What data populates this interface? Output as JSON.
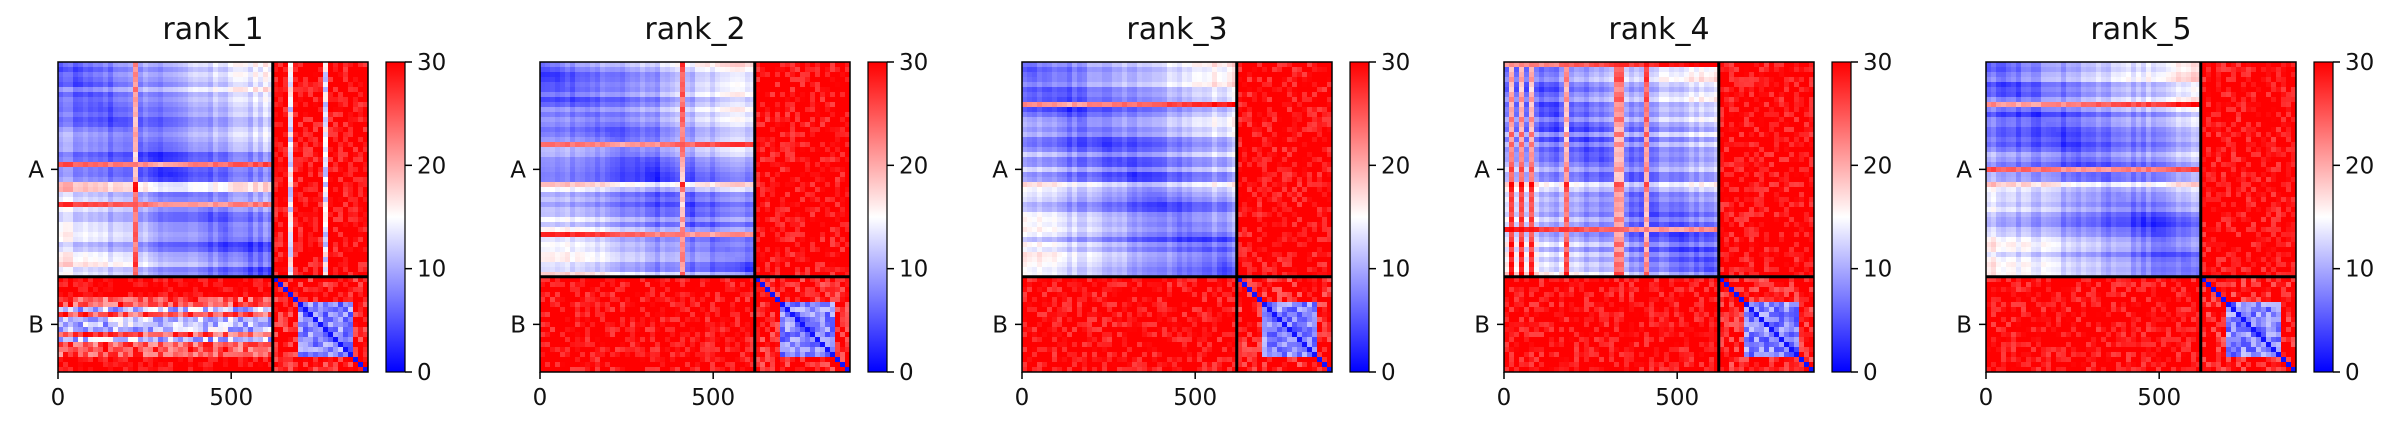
{
  "figure": {
    "background": "#ffffff"
  },
  "colormap": {
    "name": "bwr",
    "low": "#0000ff",
    "mid": "#ffffff",
    "high": "#ff0000"
  },
  "chart_data": [
    {
      "type": "heatmap",
      "title": "rank_1",
      "matrix_size": 895,
      "chain_boundary": 620,
      "chains": [
        "A",
        "B"
      ],
      "xticks": [
        0,
        500
      ],
      "xlim": [
        0,
        895
      ],
      "colorbar": {
        "ticks": [
          0,
          10,
          20,
          30
        ],
        "range": [
          0,
          30
        ]
      },
      "inter_chain_level": "mixed",
      "grid": false
    },
    {
      "type": "heatmap",
      "title": "rank_2",
      "matrix_size": 895,
      "chain_boundary": 620,
      "chains": [
        "A",
        "B"
      ],
      "xticks": [
        0,
        500
      ],
      "xlim": [
        0,
        895
      ],
      "colorbar": {
        "ticks": [
          0,
          10,
          20,
          30
        ],
        "range": [
          0,
          30
        ]
      },
      "inter_chain_level": "high",
      "grid": false
    },
    {
      "type": "heatmap",
      "title": "rank_3",
      "matrix_size": 895,
      "chain_boundary": 620,
      "chains": [
        "A",
        "B"
      ],
      "xticks": [
        0,
        500
      ],
      "xlim": [
        0,
        895
      ],
      "colorbar": {
        "ticks": [
          0,
          10,
          20,
          30
        ],
        "range": [
          0,
          30
        ]
      },
      "inter_chain_level": "high",
      "grid": false
    },
    {
      "type": "heatmap",
      "title": "rank_4",
      "matrix_size": 895,
      "chain_boundary": 620,
      "chains": [
        "A",
        "B"
      ],
      "xticks": [
        0,
        500
      ],
      "xlim": [
        0,
        895
      ],
      "colorbar": {
        "ticks": [
          0,
          10,
          20,
          30
        ],
        "range": [
          0,
          30
        ]
      },
      "inter_chain_level": "high",
      "grid": false
    },
    {
      "type": "heatmap",
      "title": "rank_5",
      "matrix_size": 895,
      "chain_boundary": 620,
      "chains": [
        "A",
        "B"
      ],
      "xticks": [
        0,
        500
      ],
      "xlim": [
        0,
        895
      ],
      "colorbar": {
        "ticks": [
          0,
          10,
          20,
          30
        ],
        "range": [
          0,
          30
        ]
      },
      "inter_chain_level": "high",
      "grid": false
    }
  ]
}
